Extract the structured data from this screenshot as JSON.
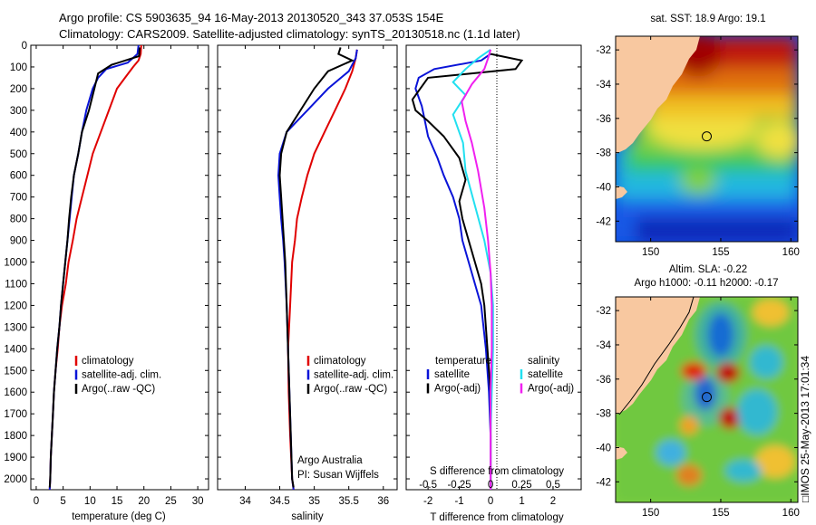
{
  "header": {
    "line1": "Argo profile: CS 5903635_94 16-May-2013 20130520_343 37.053S 154E",
    "line2": "Climatology: CARS2009. Satellite-adjusted climatology: synTS_20130518.nc (1.1d later)"
  },
  "side_stamp": "□IMOS 25-May-2013 17:01:34",
  "credits": {
    "org": "Argo Australia",
    "pi": "PI: Susan Wijffels"
  },
  "colors": {
    "red": "#e00000",
    "blue": "#0a14d8",
    "black": "#000000",
    "cyan": "#22e0f0",
    "magenta": "#f020f0",
    "land": "#f8c8a0"
  },
  "chart_data": [
    {
      "type": "line",
      "id": "temperature",
      "xlabel": "temperature (deg C)",
      "ylabel": "",
      "xlim": [
        -1,
        32
      ],
      "ylim": [
        2050,
        0
      ],
      "xticks": [
        0,
        5,
        10,
        15,
        20,
        25,
        30
      ],
      "yticks": [
        0,
        100,
        200,
        300,
        400,
        500,
        600,
        700,
        800,
        900,
        1000,
        1100,
        1200,
        1300,
        1400,
        1500,
        1600,
        1700,
        1800,
        1900,
        2000
      ],
      "legend": [
        "climatology",
        "satellite-adj. clim.",
        "Argo(..raw -QC)"
      ],
      "series": [
        {
          "name": "climatology",
          "color": "red",
          "points": [
            [
              19.5,
              0
            ],
            [
              19.4,
              40
            ],
            [
              19,
              70
            ],
            [
              18,
              100
            ],
            [
              16.5,
              150
            ],
            [
              15,
              200
            ],
            [
              13.5,
              300
            ],
            [
              12,
              400
            ],
            [
              10.5,
              500
            ],
            [
              9.5,
              600
            ],
            [
              8.5,
              700
            ],
            [
              7.5,
              800
            ],
            [
              6.8,
              900
            ],
            [
              6,
              1000
            ],
            [
              5.5,
              1100
            ],
            [
              4.8,
              1200
            ],
            [
              4.3,
              1300
            ],
            [
              4,
              1400
            ],
            [
              3.6,
              1500
            ],
            [
              3.3,
              1600
            ],
            [
              3.1,
              1700
            ],
            [
              2.9,
              1800
            ],
            [
              2.7,
              1900
            ],
            [
              2.6,
              2000
            ],
            [
              2.5,
              2050
            ]
          ]
        },
        {
          "name": "satellite-adj. clim.",
          "color": "blue",
          "points": [
            [
              19,
              0
            ],
            [
              18.8,
              40
            ],
            [
              17,
              80
            ],
            [
              13,
              110
            ],
            [
              11.5,
              150
            ],
            [
              10.5,
              200
            ],
            [
              9.3,
              300
            ],
            [
              8.5,
              400
            ],
            [
              7.8,
              500
            ],
            [
              7,
              600
            ],
            [
              6.6,
              700
            ],
            [
              6.2,
              800
            ],
            [
              5.8,
              900
            ],
            [
              5.4,
              1000
            ],
            [
              5,
              1100
            ],
            [
              4.6,
              1200
            ],
            [
              4.3,
              1300
            ],
            [
              3.9,
              1400
            ],
            [
              3.6,
              1500
            ],
            [
              3.3,
              1600
            ],
            [
              3.1,
              1700
            ],
            [
              2.9,
              1800
            ],
            [
              2.7,
              1900
            ],
            [
              2.6,
              2000
            ],
            [
              2.5,
              2050
            ]
          ]
        },
        {
          "name": "Argo(..raw -QC)",
          "color": "black",
          "points": [
            [
              19.2,
              10
            ],
            [
              19.1,
              50
            ],
            [
              14,
              90
            ],
            [
              11.5,
              130
            ],
            [
              10.8,
              200
            ],
            [
              9.8,
              300
            ],
            [
              8.5,
              400
            ],
            [
              7.8,
              500
            ],
            [
              7,
              600
            ],
            [
              6.5,
              700
            ],
            [
              6.1,
              800
            ],
            [
              5.8,
              900
            ],
            [
              5.4,
              1000
            ],
            [
              5,
              1100
            ],
            [
              4.6,
              1200
            ],
            [
              4.3,
              1300
            ],
            [
              3.9,
              1400
            ],
            [
              3.6,
              1500
            ],
            [
              3.3,
              1600
            ],
            [
              3.1,
              1700
            ],
            [
              2.9,
              1800
            ],
            [
              2.7,
              1900
            ],
            [
              2.6,
              2000
            ],
            [
              2.5,
              2040
            ]
          ]
        }
      ]
    },
    {
      "type": "line",
      "id": "salinity",
      "xlabel": "salinity",
      "xlim": [
        33.6,
        36.2
      ],
      "ylim": [
        2050,
        0
      ],
      "xticks": [
        34,
        34.5,
        35,
        35.5,
        36
      ],
      "legend": [
        "climatology",
        "satellite-adj. clim.",
        "Argo(..raw -QC)"
      ],
      "series": [
        {
          "name": "climatology",
          "color": "red",
          "points": [
            [
              35.62,
              20
            ],
            [
              35.6,
              60
            ],
            [
              35.55,
              120
            ],
            [
              35.45,
              200
            ],
            [
              35.3,
              300
            ],
            [
              35.15,
              400
            ],
            [
              35,
              500
            ],
            [
              34.9,
              600
            ],
            [
              34.82,
              700
            ],
            [
              34.75,
              800
            ],
            [
              34.72,
              900
            ],
            [
              34.68,
              1000
            ],
            [
              34.65,
              1200
            ],
            [
              34.62,
              1400
            ],
            [
              34.63,
              1600
            ],
            [
              34.65,
              1800
            ],
            [
              34.68,
              2000
            ],
            [
              34.7,
              2050
            ]
          ]
        },
        {
          "name": "satellite-adj. clim.",
          "color": "blue",
          "points": [
            [
              35.62,
              20
            ],
            [
              35.6,
              60
            ],
            [
              35.5,
              120
            ],
            [
              35.2,
              200
            ],
            [
              34.9,
              300
            ],
            [
              34.6,
              400
            ],
            [
              34.5,
              500
            ],
            [
              34.48,
              600
            ],
            [
              34.5,
              700
            ],
            [
              34.52,
              800
            ],
            [
              34.55,
              900
            ],
            [
              34.57,
              1000
            ],
            [
              34.6,
              1200
            ],
            [
              34.62,
              1400
            ],
            [
              34.64,
              1600
            ],
            [
              34.66,
              1800
            ],
            [
              34.68,
              2000
            ],
            [
              34.7,
              2050
            ]
          ]
        },
        {
          "name": "Argo(..raw -QC)",
          "color": "black",
          "points": [
            [
              35.38,
              10
            ],
            [
              35.35,
              40
            ],
            [
              35.55,
              70
            ],
            [
              35.2,
              120
            ],
            [
              35,
              200
            ],
            [
              34.8,
              300
            ],
            [
              34.6,
              400
            ],
            [
              34.52,
              500
            ],
            [
              34.5,
              600
            ],
            [
              34.52,
              700
            ],
            [
              34.54,
              800
            ],
            [
              34.56,
              900
            ],
            [
              34.58,
              1000
            ],
            [
              34.6,
              1200
            ],
            [
              34.62,
              1400
            ],
            [
              34.64,
              1600
            ],
            [
              34.66,
              1800
            ],
            [
              34.68,
              2000
            ],
            [
              34.7,
              2040
            ]
          ]
        }
      ]
    },
    {
      "type": "line",
      "id": "difference",
      "xlabel": "T difference from climatology",
      "top_label": "S difference from climatology",
      "xlim": [
        -2.7,
        2.9
      ],
      "ylim": [
        2050,
        0
      ],
      "xticks": [
        -2,
        -1,
        0,
        1,
        2
      ],
      "s_ticks": [
        -0.5,
        -0.25,
        0,
        0.25,
        0.5
      ],
      "s_scale": 2,
      "legend_groups": [
        {
          "title": "temperature",
          "entries": [
            "satellite",
            "Argo(-adj)"
          ]
        },
        {
          "title": "salinity",
          "entries": [
            "satellite",
            "Argo(-adj)"
          ]
        }
      ],
      "series": [
        {
          "name": "T satellite",
          "color": "blue",
          "points": [
            [
              0,
              40
            ],
            [
              -0.3,
              70
            ],
            [
              -1.8,
              110
            ],
            [
              -2.3,
              150
            ],
            [
              -2.4,
              200
            ],
            [
              -2.2,
              280
            ],
            [
              -2.1,
              350
            ],
            [
              -2,
              420
            ],
            [
              -1.7,
              520
            ],
            [
              -1.5,
              600
            ],
            [
              -1.2,
              700
            ],
            [
              -1,
              800
            ],
            [
              -0.9,
              900
            ],
            [
              -0.7,
              1000
            ],
            [
              -0.5,
              1100
            ],
            [
              -0.3,
              1200
            ],
            [
              -0.15,
              1400
            ],
            [
              -0.05,
              1600
            ],
            [
              0,
              1800
            ],
            [
              0,
              2050
            ]
          ]
        },
        {
          "name": "T Argo(-adj)",
          "color": "black",
          "points": [
            [
              0,
              40
            ],
            [
              1,
              70
            ],
            [
              0.8,
              110
            ],
            [
              -2,
              150
            ],
            [
              -2.5,
              250
            ],
            [
              -2.4,
              300
            ],
            [
              -2,
              350
            ],
            [
              -1.5,
              420
            ],
            [
              -1,
              520
            ],
            [
              -0.8,
              620
            ],
            [
              -1,
              720
            ],
            [
              -0.9,
              800
            ],
            [
              -0.7,
              900
            ],
            [
              -0.5,
              1000
            ],
            [
              -0.3,
              1100
            ],
            [
              -0.2,
              1200
            ],
            [
              -0.1,
              1400
            ],
            [
              0,
              1600
            ],
            [
              0,
              2050
            ]
          ]
        },
        {
          "name": "S satellite",
          "color": "cyan",
          "points": [
            [
              0,
              20
            ],
            [
              -0.1,
              60
            ],
            [
              -0.2,
              110
            ],
            [
              -0.3,
              170
            ],
            [
              -0.2,
              230
            ],
            [
              -0.3,
              320
            ],
            [
              -0.22,
              450
            ],
            [
              -0.2,
              580
            ],
            [
              -0.12,
              750
            ],
            [
              -0.05,
              900
            ],
            [
              0,
              1050
            ],
            [
              0.02,
              1200
            ],
            [
              0.02,
              1400
            ],
            [
              0.01,
              1600
            ],
            [
              0,
              1800
            ],
            [
              0,
              2050
            ]
          ]
        },
        {
          "name": "S Argo(-adj)",
          "color": "magenta",
          "points": [
            [
              0,
              20
            ],
            [
              -0.02,
              60
            ],
            [
              -0.05,
              110
            ],
            [
              -0.15,
              180
            ],
            [
              -0.23,
              260
            ],
            [
              -0.2,
              350
            ],
            [
              -0.15,
              450
            ],
            [
              -0.1,
              580
            ],
            [
              -0.05,
              750
            ],
            [
              -0.02,
              900
            ],
            [
              0,
              1050
            ],
            [
              0.01,
              1200
            ],
            [
              0.01,
              1400
            ],
            [
              0,
              1600
            ],
            [
              0,
              2050
            ]
          ]
        }
      ]
    },
    {
      "type": "heatmap",
      "id": "sst-map",
      "title": "sat. SST: 18.9 Argo: 19.1",
      "xlim": [
        147.5,
        160.5
      ],
      "ylim": [
        -43.2,
        -31.2
      ],
      "xticks": [
        150,
        155,
        160
      ],
      "yticks": [
        -32,
        -34,
        -36,
        -38,
        -40,
        -42
      ],
      "argo_position": [
        154,
        -37.05
      ]
    },
    {
      "type": "heatmap",
      "id": "sla-map",
      "title": "Altim. SLA: -0.22",
      "subtitle": "Argo h1000: -0.11 h2000: -0.17",
      "xlim": [
        147.5,
        160.5
      ],
      "ylim": [
        -43.2,
        -31.2
      ],
      "xticks": [
        150,
        155,
        160
      ],
      "yticks": [
        -32,
        -34,
        -36,
        -38,
        -40,
        -42
      ],
      "argo_position": [
        154,
        -37.05
      ]
    }
  ]
}
